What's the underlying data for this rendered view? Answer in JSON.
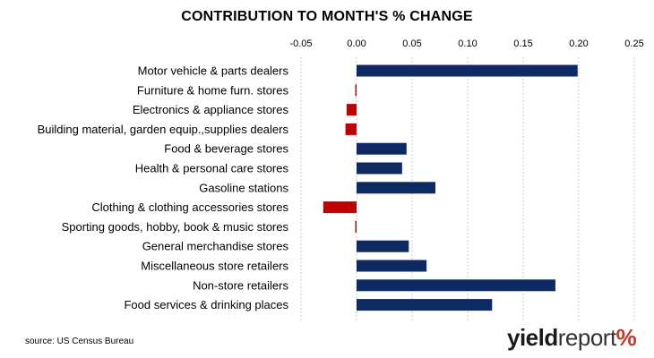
{
  "chart_data": {
    "type": "bar",
    "orientation": "horizontal",
    "title": "CONTRIBUTION TO MONTH'S % CHANGE",
    "xlabel": "",
    "ylabel": "",
    "xlim": [
      -0.05,
      0.25
    ],
    "xticks": [
      "-0.05",
      "0.00",
      "0.05",
      "0.10",
      "0.15",
      "0.20",
      "0.25"
    ],
    "xtick_values": [
      -0.05,
      0,
      0.05,
      0.1,
      0.15,
      0.2,
      0.25
    ],
    "axis_position": "top",
    "grid": "vertical-dashed",
    "legend": "none",
    "categories": [
      "Motor vehicle & parts dealers",
      "Furniture & home furn. stores",
      "Electronics & appliance stores",
      "Building material, garden equip.,supplies dealers",
      "Food & beverage stores",
      "Health & personal care stores",
      "Gasoline stations ",
      "Clothing & clothing accessories stores",
      "Sporting goods, hobby, book & music stores",
      "General merchandise stores",
      "Miscellaneous store retailers",
      "Non-store retailers",
      "Food services & drinking places"
    ],
    "values": [
      0.199,
      -0.001,
      -0.009,
      -0.01,
      0.045,
      0.041,
      0.071,
      -0.03,
      -0.001,
      0.047,
      0.063,
      0.179,
      0.122
    ],
    "colors": {
      "positive": "#0d2a63",
      "negative": "#c00000"
    }
  },
  "footer": {
    "source": "source: US Census Bureau",
    "logo_yield": "yield",
    "logo_report": "report",
    "logo_pct": "%"
  }
}
